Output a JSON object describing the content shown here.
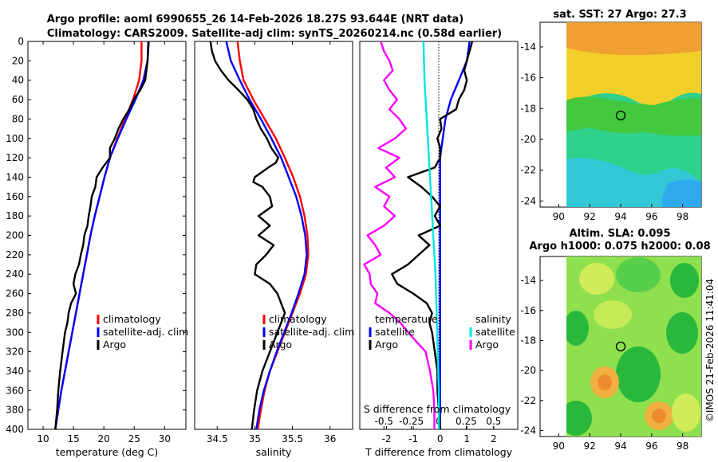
{
  "header": {
    "line1": "Argo profile: aoml 6990655_26 14-Feb-2026 18.27S 93.644E (NRT data)",
    "line2": "Climatology: CARS2009. Satellite-adj clim: synTS_20260214.nc (0.58d earlier)"
  },
  "depth_ticks": [
    "0",
    "20",
    "40",
    "60",
    "80",
    "100",
    "120",
    "140",
    "160",
    "180",
    "200",
    "220",
    "240",
    "260",
    "280",
    "300",
    "320",
    "340",
    "360",
    "380",
    "400"
  ],
  "colors": {
    "climatology": "#ff0000",
    "satellite": "#0000ff",
    "argo": "#000000",
    "t_diff": "#ff00ff",
    "s_diff": "#00e5e5"
  },
  "chart_data": [
    {
      "type": "line",
      "id": "temperature",
      "xlabel": "temperature (deg C)",
      "xlim": [
        7.5,
        33.5
      ],
      "ylim": [
        0,
        400
      ],
      "x_ticks": [
        "10",
        "15",
        "20",
        "25",
        "30"
      ],
      "legend": [
        "climatology",
        "satellite-adj. clim",
        "Argo"
      ],
      "series": [
        {
          "name": "climatology",
          "depth": [
            0,
            20,
            40,
            60,
            80,
            100,
            120,
            140,
            160,
            180,
            200,
            220,
            240,
            260,
            280,
            300,
            320,
            340,
            360,
            380,
            400
          ],
          "values": [
            26.2,
            26.2,
            25.8,
            24.8,
            23.5,
            22.2,
            21.0,
            20.1,
            19.3,
            18.5,
            17.8,
            17.2,
            16.6,
            16.0,
            15.4,
            14.8,
            14.2,
            13.6,
            13.0,
            12.5,
            12.0
          ]
        },
        {
          "name": "satellite-adj. clim",
          "depth": [
            0,
            20,
            40,
            60,
            80,
            100,
            120,
            140,
            160,
            180,
            200,
            220,
            240,
            260,
            280,
            300,
            320,
            340,
            360,
            380,
            400
          ],
          "values": [
            27.3,
            27.2,
            26.5,
            25.2,
            23.7,
            22.3,
            21.0,
            20.1,
            19.3,
            18.5,
            17.8,
            17.2,
            16.6,
            16.0,
            15.4,
            14.8,
            14.2,
            13.6,
            13.0,
            12.5,
            12.0
          ]
        },
        {
          "name": "Argo",
          "depth": [
            0,
            20,
            40,
            50,
            60,
            70,
            80,
            90,
            100,
            110,
            120,
            130,
            140,
            150,
            160,
            170,
            180,
            190,
            200,
            210,
            220,
            230,
            240,
            250,
            260,
            270,
            280,
            290,
            300,
            320,
            340,
            360,
            380,
            400
          ],
          "values": [
            27.4,
            27.2,
            26.8,
            26.0,
            24.9,
            24.2,
            23.2,
            22.4,
            21.8,
            21.0,
            21.0,
            19.8,
            18.8,
            18.6,
            18.0,
            17.8,
            17.5,
            17.3,
            16.8,
            16.6,
            16.2,
            15.9,
            15.3,
            15.0,
            15.4,
            14.6,
            14.2,
            14.0,
            13.6,
            13.2,
            12.8,
            12.5,
            12.3,
            12.0
          ]
        }
      ]
    },
    {
      "type": "line",
      "id": "salinity",
      "xlabel": "salinity",
      "xlim": [
        34.2,
        36.3
      ],
      "ylim": [
        0,
        400
      ],
      "x_ticks": [
        "34.5",
        "35",
        "35.5",
        "36"
      ],
      "legend": [
        "climatology",
        "satellite-adj. clim",
        "Argo"
      ],
      "series": [
        {
          "name": "climatology",
          "depth": [
            0,
            20,
            40,
            60,
            80,
            100,
            120,
            140,
            160,
            180,
            200,
            220,
            240,
            260,
            280,
            300,
            320,
            340,
            360,
            380,
            400
          ],
          "values": [
            34.77,
            34.8,
            34.85,
            34.98,
            35.13,
            35.28,
            35.4,
            35.51,
            35.6,
            35.66,
            35.7,
            35.71,
            35.68,
            35.6,
            35.5,
            35.4,
            35.3,
            35.2,
            35.13,
            35.08,
            35.04
          ]
        },
        {
          "name": "satellite-adj. clim",
          "depth": [
            0,
            20,
            40,
            60,
            80,
            100,
            120,
            140,
            160,
            180,
            200,
            220,
            240,
            260,
            280,
            300,
            320,
            340,
            360,
            380,
            400
          ],
          "values": [
            34.62,
            34.68,
            34.8,
            34.93,
            35.08,
            35.22,
            35.35,
            35.45,
            35.55,
            35.62,
            35.67,
            35.69,
            35.66,
            35.58,
            35.49,
            35.39,
            35.29,
            35.2,
            35.12,
            35.06,
            35.02
          ]
        },
        {
          "name": "Argo",
          "depth": [
            0,
            10,
            20,
            30,
            40,
            50,
            60,
            70,
            80,
            90,
            100,
            110,
            120,
            125,
            130,
            140,
            145,
            150,
            160,
            170,
            180,
            190,
            200,
            210,
            220,
            230,
            240,
            250,
            260,
            270,
            280,
            290,
            300,
            320,
            340,
            360,
            380,
            400
          ],
          "values": [
            34.41,
            34.43,
            34.47,
            34.55,
            34.65,
            34.78,
            34.9,
            34.98,
            35.02,
            35.08,
            35.16,
            35.22,
            35.31,
            35.28,
            35.18,
            35.0,
            34.98,
            35.1,
            35.2,
            35.23,
            35.05,
            35.2,
            35.05,
            35.25,
            35.15,
            35.02,
            35.0,
            35.2,
            35.3,
            35.35,
            35.4,
            35.35,
            35.3,
            35.2,
            35.1,
            35.03,
            34.99,
            34.96
          ]
        }
      ]
    },
    {
      "type": "line",
      "id": "differences",
      "xlabel": "T difference from climatology",
      "xlabel2": "S difference from climatology",
      "xlim": [
        -3.0,
        2.9
      ],
      "xlim_top": [
        -0.72,
        0.72
      ],
      "ylim": [
        0,
        400
      ],
      "x_ticks": [
        "-2",
        "-1",
        "0",
        "1",
        "2"
      ],
      "x_ticks_top": [
        "-0.5",
        "-0.25",
        "0",
        "0.25",
        "0.5"
      ],
      "legend": {
        "t_title": "temperature",
        "s_title": "salinity",
        "items": [
          "satellite",
          "Argo",
          "satellite",
          "Argo"
        ]
      },
      "series": [
        {
          "name": "T satellite",
          "depth": [
            0,
            20,
            40,
            60,
            80,
            100,
            120,
            140,
            160,
            180,
            200,
            220,
            240,
            260,
            280,
            300,
            320,
            340,
            360,
            380,
            400
          ],
          "values": [
            1.1,
            1.0,
            0.7,
            0.4,
            0.2,
            0.1,
            0.0,
            0.0,
            0.0,
            0.0,
            0.0,
            0.0,
            0.0,
            0.0,
            0.0,
            0.0,
            0.0,
            0.0,
            0.0,
            0.0,
            0.0
          ]
        },
        {
          "name": "T Argo",
          "depth": [
            0,
            10,
            20,
            30,
            40,
            50,
            60,
            70,
            80,
            90,
            100,
            110,
            120,
            130,
            140,
            150,
            160,
            170,
            180,
            190,
            200,
            210,
            220,
            230,
            240,
            250,
            260,
            270,
            280,
            290,
            300,
            320,
            340,
            360,
            380,
            400
          ],
          "values": [
            1.2,
            1.1,
            1.0,
            0.9,
            1.0,
            0.9,
            0.7,
            0.6,
            0.0,
            0.05,
            -0.1,
            0.0,
            0.0,
            -0.2,
            -1.2,
            -0.7,
            -0.3,
            0.0,
            -0.2,
            0.0,
            -0.8,
            -0.4,
            -0.8,
            -1.2,
            -1.8,
            -1.6,
            -1.0,
            -0.5,
            -0.3,
            -0.4,
            -0.3,
            -0.2,
            -0.1,
            -0.1,
            -0.05,
            0.0
          ]
        },
        {
          "name": "S satellite",
          "depth": [
            0,
            40,
            80,
            120,
            160,
            200,
            240,
            280,
            320,
            360,
            400
          ],
          "values": [
            -0.14,
            -0.13,
            -0.11,
            -0.09,
            -0.07,
            -0.05,
            -0.03,
            -0.02,
            -0.01,
            0.0,
            0.0
          ]
        },
        {
          "name": "S Argo",
          "depth": [
            0,
            10,
            20,
            30,
            40,
            50,
            60,
            70,
            80,
            90,
            100,
            110,
            120,
            130,
            140,
            150,
            160,
            170,
            180,
            190,
            200,
            210,
            220,
            230,
            240,
            250,
            260,
            270,
            280,
            290,
            300,
            320,
            340,
            360,
            380,
            400
          ],
          "values": [
            -0.53,
            -0.5,
            -0.45,
            -0.42,
            -0.5,
            -0.45,
            -0.38,
            -0.45,
            -0.36,
            -0.3,
            -0.4,
            -0.55,
            -0.36,
            -0.48,
            -0.4,
            -0.58,
            -0.45,
            -0.5,
            -0.4,
            -0.5,
            -0.65,
            -0.58,
            -0.53,
            -0.68,
            -0.63,
            -0.62,
            -0.56,
            -0.58,
            -0.45,
            -0.35,
            -0.28,
            -0.12,
            -0.08,
            -0.05,
            -0.04,
            -0.04
          ]
        }
      ]
    },
    {
      "type": "heatmap",
      "id": "sst_map",
      "title": "sat. SST: 27 Argo: 27.3",
      "x_ticks": [
        "90",
        "92",
        "94",
        "96",
        "98"
      ],
      "y_ticks": [
        "-14",
        "-16",
        "-18",
        "-20",
        "-22",
        "-24"
      ],
      "xlim": [
        88.8,
        99.2
      ],
      "ylim": [
        -24.4,
        -12.4
      ],
      "marker": {
        "lon": 93.644,
        "lat": -18.27
      }
    },
    {
      "type": "heatmap",
      "id": "sla_map",
      "title": "Altim. SLA: 0.095",
      "subtitle": "Argo h1000: 0.075 h2000: 0.08",
      "x_ticks": [
        "90",
        "92",
        "94",
        "96",
        "98"
      ],
      "y_ticks": [
        "-14",
        "-16",
        "-18",
        "-20",
        "-22",
        "-24"
      ],
      "xlim": [
        88.8,
        99.2
      ],
      "ylim": [
        -24.4,
        -12.4
      ],
      "marker": {
        "lon": 93.644,
        "lat": -18.27
      }
    }
  ],
  "watermark": "©IMOS 21-Feb-2026 11:41:04"
}
